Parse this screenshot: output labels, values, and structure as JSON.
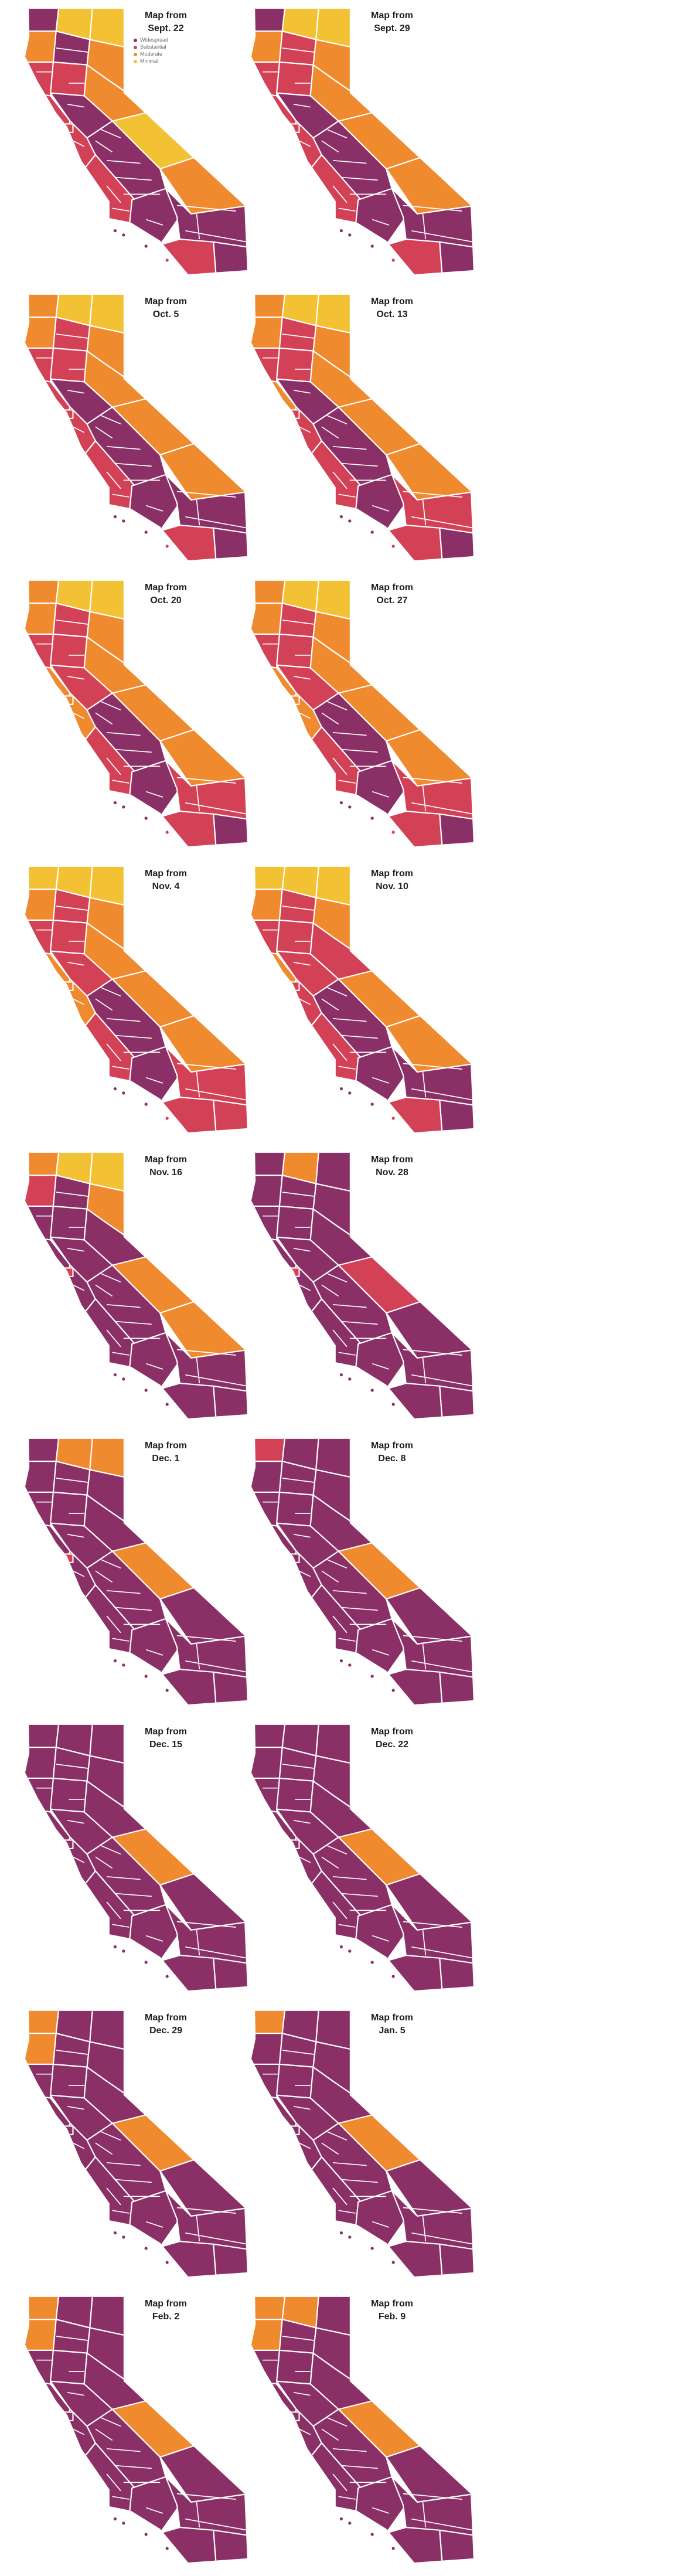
{
  "page": {
    "background": "#ffffff"
  },
  "label_prefix": "Map from",
  "tiers": {
    "W": {
      "label": "Widespread",
      "color": "#8a3067"
    },
    "S": {
      "label": "Substantial",
      "color": "#d24156"
    },
    "M": {
      "label": "Moderate",
      "color": "#ef8a2f"
    },
    "Y": {
      "label": "Minimal",
      "color": "#f2c234"
    }
  },
  "legend": {
    "items": [
      {
        "tier": "W",
        "label": "Widespread"
      },
      {
        "tier": "S",
        "label": "Substantial"
      },
      {
        "tier": "M",
        "label": "Moderate"
      },
      {
        "tier": "Y",
        "label": "Minimal"
      }
    ]
  },
  "maps": [
    {
      "date": "Sept. 22",
      "legend": true,
      "regions": {
        "dn": "W",
        "sk": "Y",
        "md": "Y",
        "ls": "M",
        "hb": "M",
        "sh": "W",
        "mn": "S",
        "sv": "S",
        "sn": "M",
        "nb": "S",
        "sc": "W",
        "ba": "S",
        "sf": "S",
        "am": "Y",
        "cv": "W",
        "ik": "M",
        "cc": "S",
        "la": "W",
        "ie": "W",
        "sdg": "S",
        "im": "W"
      }
    },
    {
      "date": "Sept. 29",
      "legend": false,
      "regions": {
        "dn": "W",
        "sk": "Y",
        "md": "Y",
        "ls": "M",
        "hb": "M",
        "sh": "S",
        "mn": "S",
        "sv": "S",
        "sn": "M",
        "nb": "S",
        "sc": "W",
        "ba": "S",
        "sf": "S",
        "am": "M",
        "cv": "W",
        "ik": "M",
        "cc": "S",
        "la": "W",
        "ie": "W",
        "sdg": "S",
        "im": "W"
      }
    },
    {
      "date": "Oct. 5",
      "legend": false,
      "regions": {
        "dn": "M",
        "sk": "Y",
        "md": "Y",
        "ls": "M",
        "hb": "M",
        "sh": "S",
        "mn": "S",
        "sv": "S",
        "sn": "M",
        "nb": "S",
        "sc": "W",
        "ba": "S",
        "sf": "S",
        "am": "M",
        "cv": "W",
        "ik": "M",
        "cc": "S",
        "la": "W",
        "ie": "W",
        "sdg": "S",
        "im": "W"
      }
    },
    {
      "date": "Oct. 13",
      "legend": false,
      "regions": {
        "dn": "M",
        "sk": "Y",
        "md": "Y",
        "ls": "M",
        "hb": "M",
        "sh": "S",
        "mn": "S",
        "sv": "S",
        "sn": "M",
        "nb": "M",
        "sc": "W",
        "ba": "S",
        "sf": "S",
        "am": "M",
        "cv": "W",
        "ik": "M",
        "cc": "S",
        "la": "W",
        "ie": "S",
        "sdg": "S",
        "im": "W"
      }
    },
    {
      "date": "Oct. 20",
      "legend": false,
      "regions": {
        "dn": "M",
        "sk": "Y",
        "md": "Y",
        "ls": "M",
        "hb": "M",
        "sh": "S",
        "mn": "S",
        "sv": "S",
        "sn": "M",
        "nb": "M",
        "sc": "S",
        "ba": "M",
        "sf": "M",
        "am": "M",
        "cv": "W",
        "ik": "M",
        "cc": "S",
        "la": "W",
        "ie": "S",
        "sdg": "S",
        "im": "W"
      }
    },
    {
      "date": "Oct. 27",
      "legend": false,
      "regions": {
        "dn": "M",
        "sk": "Y",
        "md": "Y",
        "ls": "M",
        "hb": "M",
        "sh": "S",
        "mn": "S",
        "sv": "S",
        "sn": "M",
        "nb": "M",
        "sc": "S",
        "ba": "M",
        "sf": "M",
        "am": "M",
        "cv": "W",
        "ik": "M",
        "cc": "S",
        "la": "W",
        "ie": "S",
        "sdg": "S",
        "im": "W"
      }
    },
    {
      "date": "Nov. 4",
      "legend": false,
      "regions": {
        "dn": "Y",
        "sk": "Y",
        "md": "Y",
        "ls": "M",
        "hb": "M",
        "sh": "S",
        "mn": "S",
        "sv": "S",
        "sn": "M",
        "nb": "M",
        "sc": "S",
        "ba": "M",
        "sf": "M",
        "am": "M",
        "cv": "W",
        "ik": "M",
        "cc": "S",
        "la": "W",
        "ie": "S",
        "sdg": "S",
        "im": "S"
      }
    },
    {
      "date": "Nov. 10",
      "legend": false,
      "regions": {
        "dn": "Y",
        "sk": "Y",
        "md": "Y",
        "ls": "M",
        "hb": "M",
        "sh": "S",
        "mn": "S",
        "sv": "S",
        "sn": "S",
        "nb": "M",
        "sc": "S",
        "ba": "S",
        "sf": "S",
        "am": "M",
        "cv": "W",
        "ik": "M",
        "cc": "S",
        "la": "W",
        "ie": "W",
        "sdg": "S",
        "im": "W"
      }
    },
    {
      "date": "Nov. 16",
      "legend": false,
      "regions": {
        "dn": "M",
        "sk": "Y",
        "md": "Y",
        "ls": "M",
        "hb": "S",
        "sh": "W",
        "mn": "W",
        "sv": "W",
        "sn": "W",
        "nb": "W",
        "sc": "W",
        "ba": "W",
        "sf": "S",
        "am": "M",
        "cv": "W",
        "ik": "M",
        "cc": "W",
        "la": "W",
        "ie": "W",
        "sdg": "W",
        "im": "W"
      }
    },
    {
      "date": "Nov. 28",
      "legend": false,
      "regions": {
        "dn": "W",
        "sk": "M",
        "md": "W",
        "ls": "W",
        "hb": "W",
        "sh": "W",
        "mn": "W",
        "sv": "W",
        "sn": "W",
        "nb": "W",
        "sc": "W",
        "ba": "W",
        "sf": "S",
        "am": "S",
        "cv": "W",
        "ik": "W",
        "cc": "W",
        "la": "W",
        "ie": "W",
        "sdg": "W",
        "im": "W"
      }
    },
    {
      "date": "Dec. 1",
      "legend": false,
      "regions": {
        "dn": "W",
        "sk": "M",
        "md": "M",
        "ls": "W",
        "hb": "W",
        "sh": "W",
        "mn": "W",
        "sv": "W",
        "sn": "W",
        "nb": "W",
        "sc": "W",
        "ba": "W",
        "sf": "S",
        "am": "M",
        "cv": "W",
        "ik": "W",
        "cc": "W",
        "la": "W",
        "ie": "W",
        "sdg": "W",
        "im": "W"
      }
    },
    {
      "date": "Dec. 8",
      "legend": false,
      "regions": {
        "dn": "S",
        "sk": "W",
        "md": "W",
        "ls": "W",
        "hb": "W",
        "sh": "W",
        "mn": "W",
        "sv": "W",
        "sn": "W",
        "nb": "W",
        "sc": "W",
        "ba": "W",
        "sf": "W",
        "am": "M",
        "cv": "W",
        "ik": "W",
        "cc": "W",
        "la": "W",
        "ie": "W",
        "sdg": "W",
        "im": "W"
      }
    },
    {
      "date": "Dec. 15",
      "legend": false,
      "regions": {
        "dn": "W",
        "sk": "W",
        "md": "W",
        "ls": "W",
        "hb": "W",
        "sh": "W",
        "mn": "W",
        "sv": "W",
        "sn": "W",
        "nb": "W",
        "sc": "W",
        "ba": "W",
        "sf": "W",
        "am": "M",
        "cv": "W",
        "ik": "W",
        "cc": "W",
        "la": "W",
        "ie": "W",
        "sdg": "W",
        "im": "W"
      }
    },
    {
      "date": "Dec. 22",
      "legend": false,
      "regions": {
        "dn": "W",
        "sk": "W",
        "md": "W",
        "ls": "W",
        "hb": "W",
        "sh": "W",
        "mn": "W",
        "sv": "W",
        "sn": "W",
        "nb": "W",
        "sc": "W",
        "ba": "W",
        "sf": "W",
        "am": "M",
        "cv": "W",
        "ik": "W",
        "cc": "W",
        "la": "W",
        "ie": "W",
        "sdg": "W",
        "im": "W"
      }
    },
    {
      "date": "Dec. 29",
      "legend": false,
      "regions": {
        "dn": "M",
        "sk": "W",
        "md": "W",
        "ls": "W",
        "hb": "M",
        "sh": "W",
        "mn": "W",
        "sv": "W",
        "sn": "W",
        "nb": "W",
        "sc": "W",
        "ba": "W",
        "sf": "W",
        "am": "M",
        "cv": "W",
        "ik": "W",
        "cc": "W",
        "la": "W",
        "ie": "W",
        "sdg": "W",
        "im": "W"
      }
    },
    {
      "date": "Jan. 5",
      "legend": false,
      "regions": {
        "dn": "M",
        "sk": "W",
        "md": "W",
        "ls": "W",
        "hb": "W",
        "sh": "W",
        "mn": "W",
        "sv": "W",
        "sn": "W",
        "nb": "W",
        "sc": "W",
        "ba": "W",
        "sf": "W",
        "am": "M",
        "cv": "W",
        "ik": "W",
        "cc": "W",
        "la": "W",
        "ie": "W",
        "sdg": "W",
        "im": "W"
      }
    },
    {
      "date": "Feb. 2",
      "legend": false,
      "regions": {
        "dn": "M",
        "sk": "W",
        "md": "W",
        "ls": "W",
        "hb": "M",
        "sh": "W",
        "mn": "W",
        "sv": "W",
        "sn": "W",
        "nb": "W",
        "sc": "W",
        "ba": "W",
        "sf": "W",
        "am": "M",
        "cv": "W",
        "ik": "W",
        "cc": "W",
        "la": "W",
        "ie": "W",
        "sdg": "W",
        "im": "W"
      }
    },
    {
      "date": "Feb. 9",
      "legend": false,
      "regions": {
        "dn": "M",
        "sk": "M",
        "md": "W",
        "ls": "W",
        "hb": "M",
        "sh": "W",
        "mn": "W",
        "sv": "W",
        "sn": "W",
        "nb": "W",
        "sc": "W",
        "ba": "W",
        "sf": "W",
        "am": "M",
        "cv": "W",
        "ik": "W",
        "cc": "W",
        "la": "W",
        "ie": "W",
        "sdg": "W",
        "im": "W"
      }
    }
  ]
}
